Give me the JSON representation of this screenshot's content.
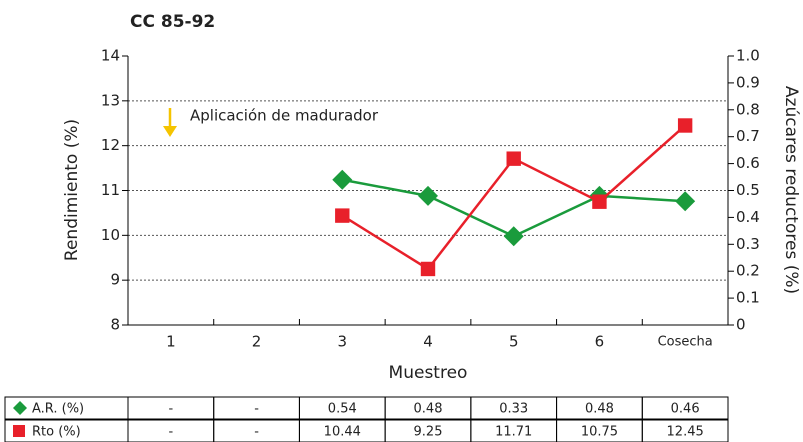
{
  "chart_data": {
    "type": "line",
    "title": "CC 85-92",
    "x_label": "Muestreo",
    "y_label": "Rendimiento (%)",
    "y2_label": "Azúcares reductores (%)",
    "annotation": "Aplicación de madurador",
    "annotation_color": "#f5c400",
    "categories": [
      "1",
      "2",
      "3",
      "4",
      "5",
      "6",
      "Cosecha"
    ],
    "ylim": [
      8,
      14
    ],
    "yticks": [
      8,
      9,
      10,
      11,
      12,
      13,
      14
    ],
    "y2lim": [
      0,
      1
    ],
    "y2ticks": [
      0,
      0.1,
      0.2,
      0.3,
      0.4,
      0.5,
      0.6,
      0.7,
      0.8,
      0.9,
      {
        "value": 1,
        "label": "1.0"
      }
    ],
    "grid": true,
    "series": [
      {
        "name": "A.R. (%)",
        "color": "#1a9b3c",
        "marker": "diamond",
        "axis": "y2",
        "values": [
          null,
          null,
          0.54,
          0.48,
          0.33,
          0.48,
          0.46
        ],
        "value_labels": [
          "-",
          "-",
          "0.54",
          "0.48",
          "0.33",
          "0.48",
          "0.46"
        ]
      },
      {
        "name": "Rto (%)",
        "color": "#e8202a",
        "marker": "square",
        "axis": "y",
        "values": [
          null,
          null,
          10.44,
          9.25,
          11.71,
          10.75,
          12.45
        ],
        "value_labels": [
          "-",
          "-",
          "10.44",
          "9.25",
          "11.71",
          "10.75",
          "12.45"
        ]
      }
    ]
  }
}
